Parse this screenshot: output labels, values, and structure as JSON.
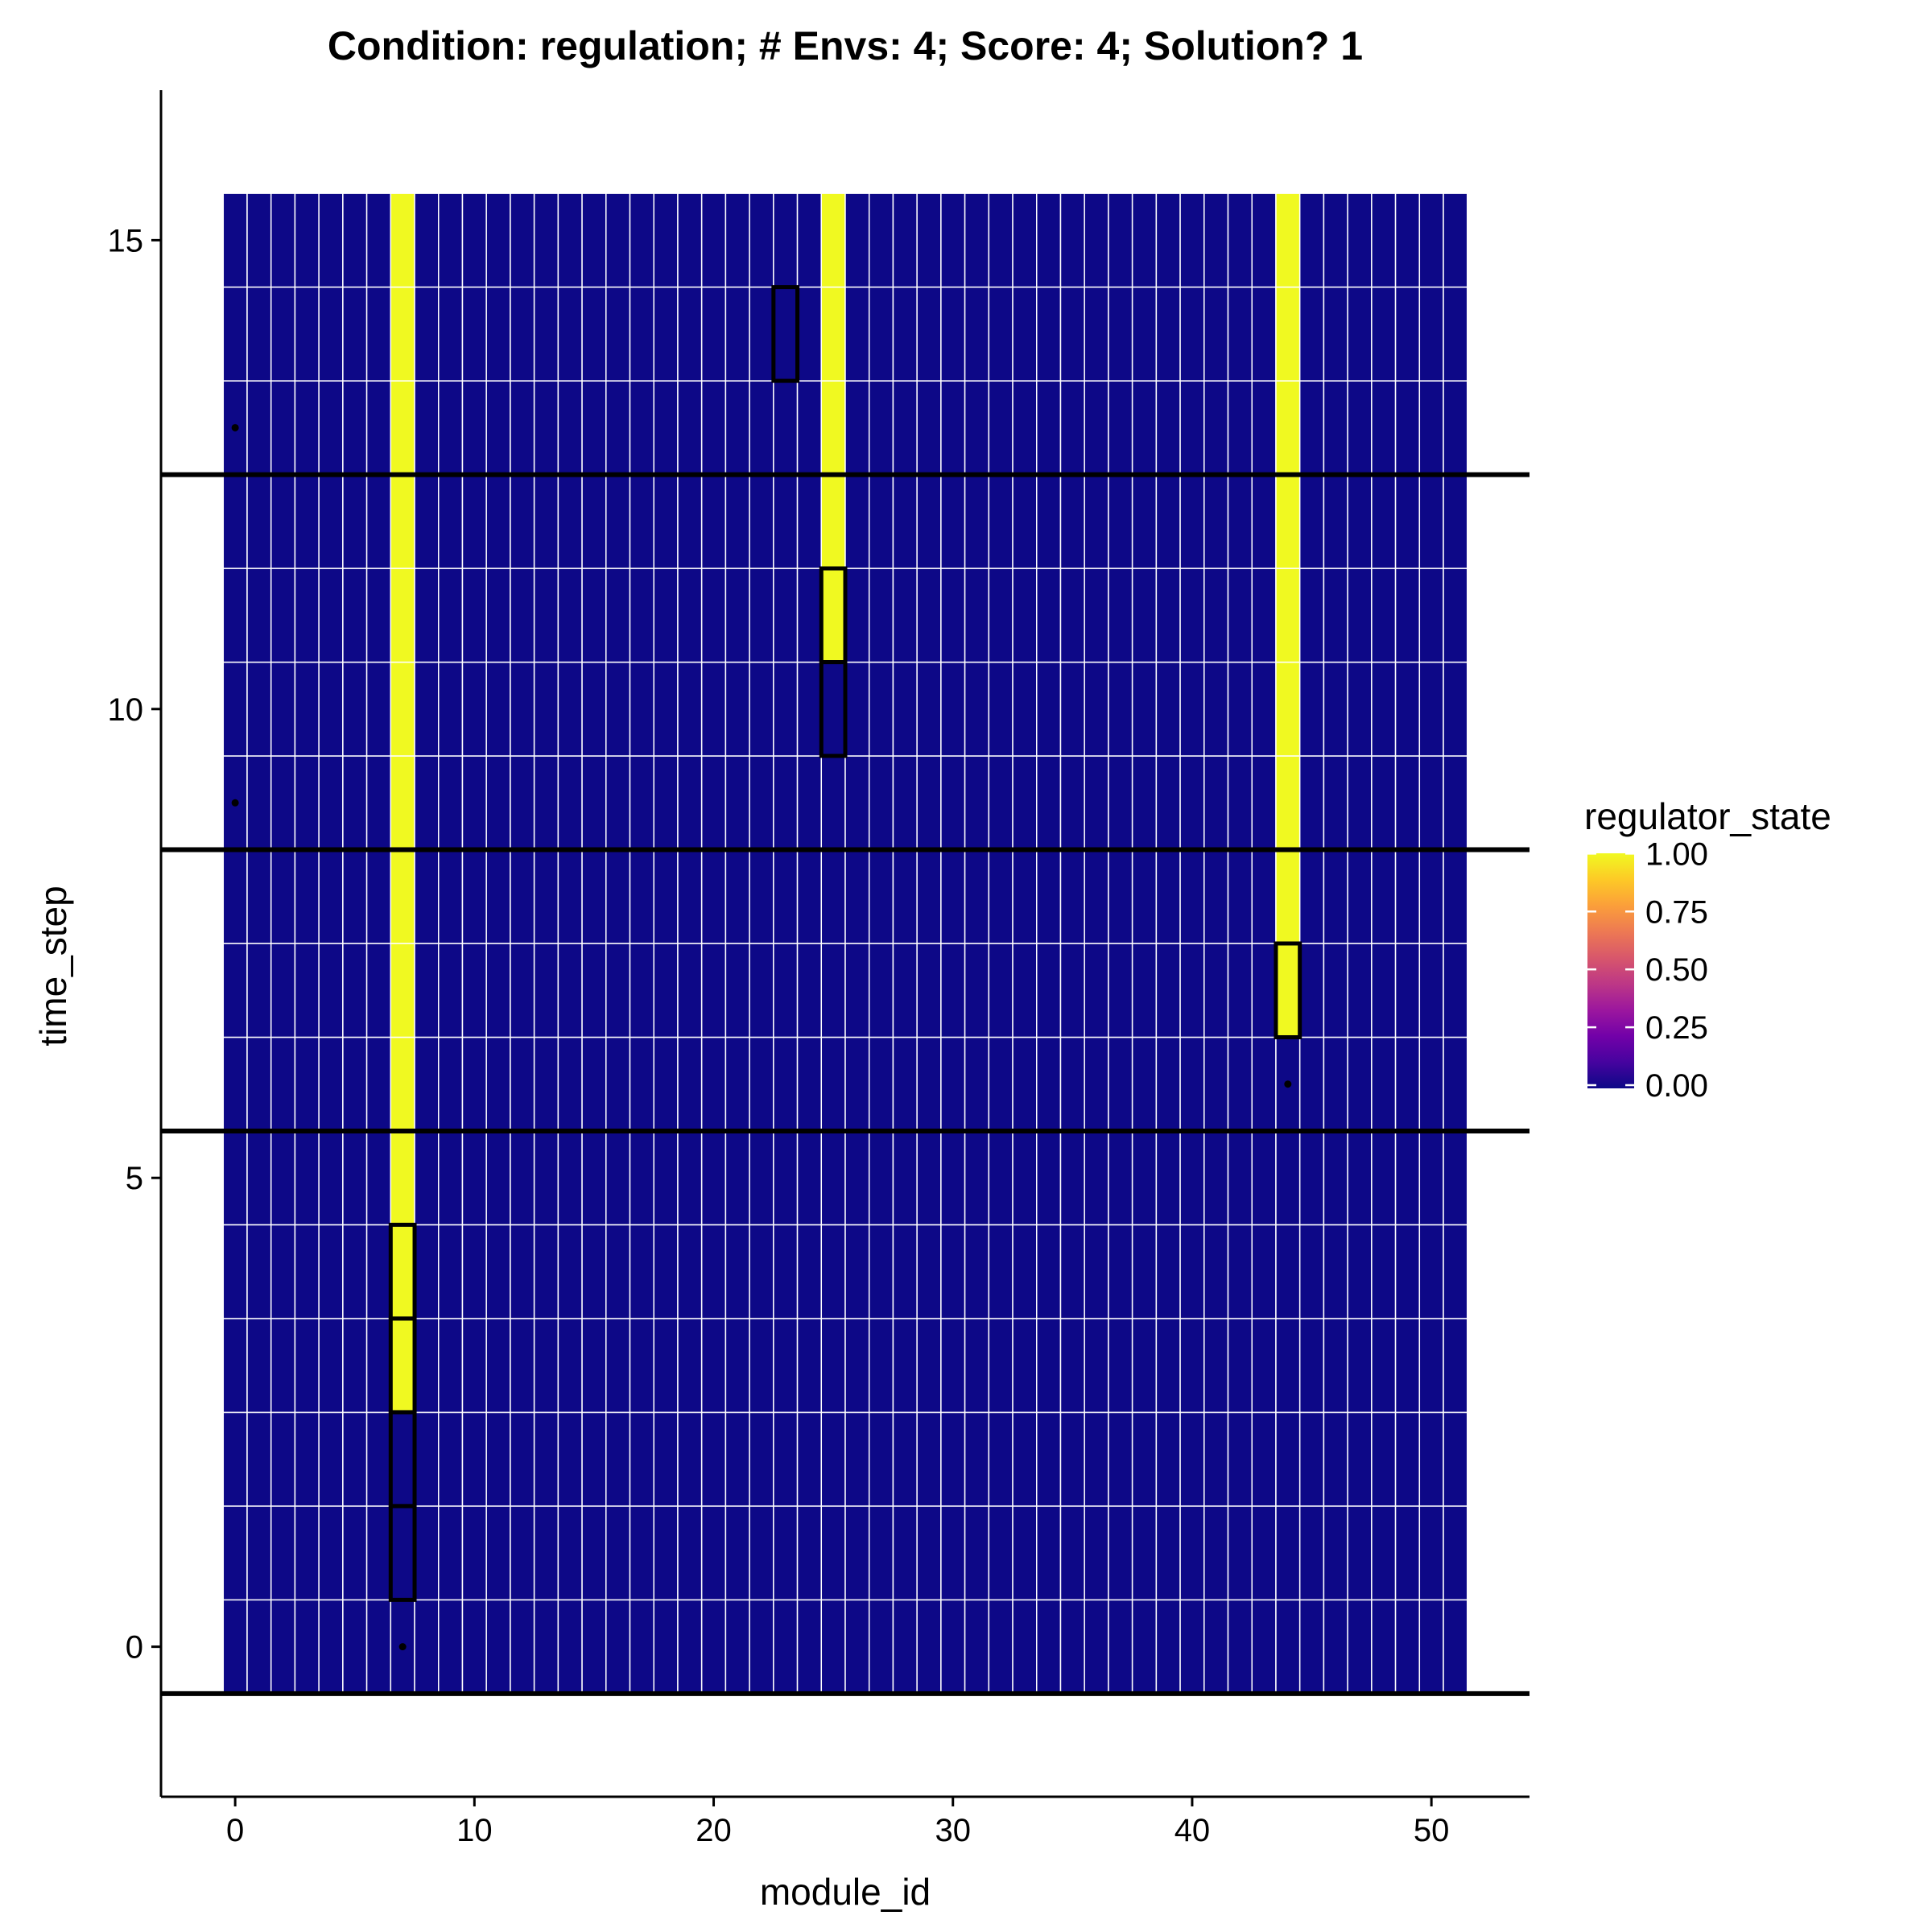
{
  "chart_data": {
    "type": "heatmap",
    "title": "Condition: regulation; # Envs: 4; Score: 4; Solution? 1",
    "xlabel": "module_id",
    "ylabel": "time_step",
    "xlim": [
      -3.1,
      54.1
    ],
    "ylim": [
      -1.6,
      16.6
    ],
    "x_ticks": [
      0,
      10,
      20,
      30,
      40,
      50
    ],
    "y_ticks": [
      0,
      5,
      10,
      15
    ],
    "grid": false,
    "modules": [
      0,
      51
    ],
    "time_steps": [
      0,
      15
    ],
    "background_value": 0.0,
    "on_cells": [
      {
        "module": 7,
        "from": 3,
        "to": 15
      },
      {
        "module": 25,
        "from": 11,
        "to": 15
      },
      {
        "module": 44,
        "from": 7,
        "to": 15
      }
    ],
    "highlighted_cells": [
      {
        "module": 7,
        "time_step": 1
      },
      {
        "module": 7,
        "time_step": 2
      },
      {
        "module": 7,
        "time_step": 3
      },
      {
        "module": 7,
        "time_step": 4
      },
      {
        "module": 23,
        "time_step": 14
      },
      {
        "module": 25,
        "time_step": 10
      },
      {
        "module": 25,
        "time_step": 11
      },
      {
        "module": 44,
        "time_step": 7
      }
    ],
    "points": [
      {
        "module": 0,
        "time_step": 13
      },
      {
        "module": 0,
        "time_step": 9
      },
      {
        "module": 44,
        "time_step": 6
      },
      {
        "module": 7,
        "time_step": 0
      }
    ],
    "env_boundaries": [
      -0.5,
      5.5,
      8.5,
      12.5
    ],
    "legend": {
      "title": "regulator_state",
      "position": "right",
      "labels": [
        "1.00",
        "0.75",
        "0.50",
        "0.25",
        "0.00"
      ],
      "values": [
        1.0,
        0.75,
        0.5,
        0.25,
        0.0
      ],
      "stops": [
        "#0d0887",
        "#46039f",
        "#7201a8",
        "#9c179e",
        "#bd3786",
        "#d8576b",
        "#ed7953",
        "#fb9f3a",
        "#fdca26",
        "#f0f921"
      ]
    },
    "colors": {
      "low": "#0d0887",
      "high": "#f0f921",
      "cell_border": "#ffffff",
      "highlight": "#000000",
      "line": "#000000"
    }
  }
}
